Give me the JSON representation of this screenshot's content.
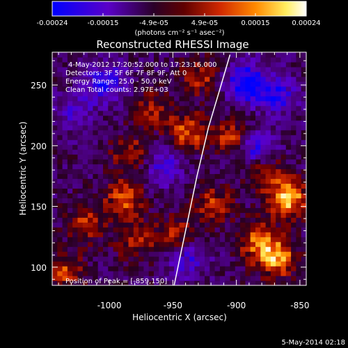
{
  "colorbar": {
    "ticks": [
      "-0.00024",
      "-0.00015",
      "-4.9e-05",
      "4.9e-05",
      "0.00015",
      "0.00024"
    ],
    "units": "(photons cm⁻² s⁻¹ asec⁻²)",
    "range": [
      -0.00024,
      0.00024
    ],
    "colors": [
      "#0000ff",
      "#5a00c8",
      "#1c0010",
      "#7a0000",
      "#e03000",
      "#ff9a00",
      "#ffff80",
      "#ffffff"
    ]
  },
  "chart_data": {
    "type": "heatmap",
    "title": "Reconstructed RHESSI Image",
    "xlabel": "Heliocentric X (arcsec)",
    "ylabel": "Heliocentric Y (arcsec)",
    "xlim": [
      -1045,
      -845
    ],
    "ylim": [
      85,
      277
    ],
    "xticks": [
      -1000,
      -950,
      -900,
      -850
    ],
    "yticks": [
      100,
      150,
      200,
      250
    ],
    "limb_curve": [
      [
        -949,
        85
      ],
      [
        -944,
        110
      ],
      [
        -938,
        140
      ],
      [
        -931,
        175
      ],
      [
        -922,
        215
      ],
      [
        -912,
        250
      ],
      [
        -905,
        275
      ]
    ],
    "hotspots": [
      {
        "x": -1020,
        "y": 135,
        "v": 0.00013
      },
      {
        "x": -990,
        "y": 155,
        "v": 0.00016
      },
      {
        "x": -982,
        "y": 120,
        "v": 0.00011
      },
      {
        "x": -985,
        "y": 192,
        "v": 0.00012
      },
      {
        "x": -968,
        "y": 228,
        "v": 0.0001
      },
      {
        "x": -940,
        "y": 210,
        "v": 0.00016
      },
      {
        "x": -930,
        "y": 255,
        "v": 0.00012
      },
      {
        "x": -905,
        "y": 205,
        "v": 0.00014
      },
      {
        "x": -920,
        "y": 150,
        "v": 0.00013
      },
      {
        "x": -885,
        "y": 120,
        "v": 0.00016
      },
      {
        "x": -862,
        "y": 155,
        "v": 0.00024
      },
      {
        "x": -870,
        "y": 105,
        "v": 0.0002
      },
      {
        "x": -880,
        "y": 180,
        "v": 0.00015
      },
      {
        "x": -1038,
        "y": 95,
        "v": 0.00014
      },
      {
        "x": -950,
        "y": 125,
        "v": 0.00012
      }
    ],
    "coldspots": [
      {
        "x": -1005,
        "y": 250,
        "v": -0.00018
      },
      {
        "x": -960,
        "y": 180,
        "v": -0.00012
      },
      {
        "x": -895,
        "y": 250,
        "v": -0.00022
      },
      {
        "x": -870,
        "y": 240,
        "v": -0.00015
      },
      {
        "x": -885,
        "y": 195,
        "v": -0.0002
      },
      {
        "x": -1030,
        "y": 225,
        "v": -0.0001
      },
      {
        "x": -940,
        "y": 105,
        "v": -0.00012
      }
    ],
    "info": {
      "time_range": "4-May-2012 17:20:52.000 to 17:23:16.000",
      "detectors": "Detectors: 3F 5F 6F 7F 8F 9F, Att 0",
      "energy": "Energy Range: 25.0 - 50.0 keV",
      "method": "Clean    Total counts: 2.97E+03",
      "peak": "Position of Peak = [-859,150]"
    }
  },
  "footer": {
    "date": "5-May-2014 02:18"
  }
}
